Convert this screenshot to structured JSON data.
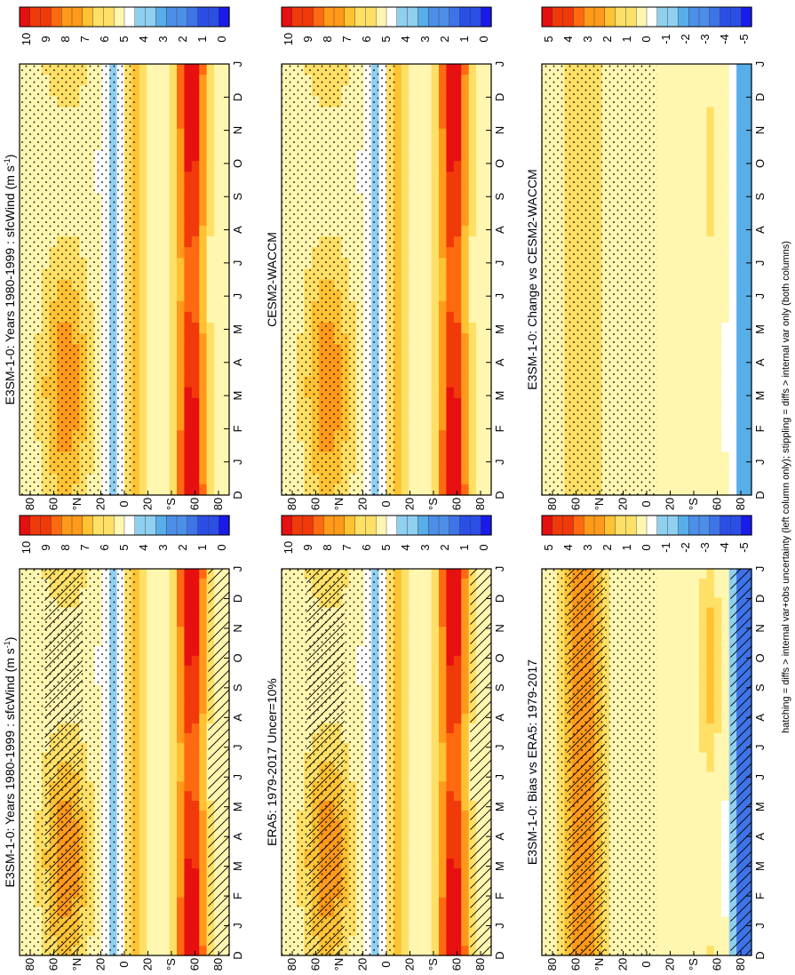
{
  "figure": {
    "caption": "hatching = diffs > internal var+obs uncertainty (left column only); stippling = diffs > internal var only (both columns)"
  },
  "chart_data": [
    {
      "type": "heatmap",
      "title": "E3SM-1-0: Years 1980-1999 : sfcWind (m s",
      "title_sup": "-1",
      "title_end": ")",
      "months": [
        "D",
        "J",
        "F",
        "M",
        "A",
        "M",
        "J",
        "J",
        "A",
        "S",
        "O",
        "N",
        "D",
        "J"
      ],
      "lat_labels": [
        "80",
        "60",
        "°N",
        "20",
        "0",
        "20",
        "°S",
        "60",
        "80"
      ],
      "colorbar": {
        "labels": [
          "0",
          "1",
          "2",
          "3",
          "4",
          "5",
          "6",
          "7",
          "8",
          "9",
          "10"
        ],
        "range": [
          0,
          10
        ]
      },
      "hatching": true,
      "stippling": true
    },
    {
      "type": "heatmap",
      "title": "E3SM-1-0: Years 1980-1999 : sfcWind (m s",
      "title_sup": "-1",
      "title_end": ")",
      "months": [
        "D",
        "J",
        "F",
        "M",
        "A",
        "M",
        "J",
        "J",
        "A",
        "S",
        "O",
        "N",
        "D",
        "J"
      ],
      "lat_labels": [
        "80",
        "60",
        "°N",
        "20",
        "0",
        "20",
        "°S",
        "60",
        "80"
      ],
      "colorbar": {
        "labels": [
          "0",
          "1",
          "2",
          "3",
          "4",
          "5",
          "6",
          "7",
          "8",
          "9",
          "10"
        ],
        "range": [
          0,
          10
        ]
      },
      "hatching": false,
      "stippling": true
    },
    {
      "type": "heatmap",
      "title": "ERA5: 1979-2017 Uncer=10%",
      "months": [
        "D",
        "J",
        "F",
        "M",
        "A",
        "M",
        "J",
        "J",
        "A",
        "S",
        "O",
        "N",
        "D",
        "J"
      ],
      "lat_labels": [
        "80",
        "60",
        "°N",
        "20",
        "0",
        "20",
        "°S",
        "60",
        "80"
      ],
      "colorbar": {
        "labels": [
          "0",
          "1",
          "2",
          "3",
          "4",
          "5",
          "6",
          "7",
          "8",
          "9",
          "10"
        ],
        "range": [
          0,
          10
        ]
      },
      "hatching": true,
      "stippling": true
    },
    {
      "type": "heatmap",
      "title": "CESM2-WACCM",
      "months": [
        "D",
        "J",
        "F",
        "M",
        "A",
        "M",
        "J",
        "J",
        "A",
        "S",
        "O",
        "N",
        "D",
        "J"
      ],
      "lat_labels": [
        "80",
        "60",
        "°N",
        "20",
        "0",
        "20",
        "°S",
        "60",
        "80"
      ],
      "colorbar": {
        "labels": [
          "0",
          "1",
          "2",
          "3",
          "4",
          "5",
          "6",
          "7",
          "8",
          "9",
          "10"
        ],
        "range": [
          0,
          10
        ]
      },
      "hatching": false,
      "stippling": true
    },
    {
      "type": "heatmap",
      "title": "E3SM-1-0: Bias vs ERA5: 1979-2017",
      "months": [
        "D",
        "J",
        "F",
        "M",
        "A",
        "M",
        "J",
        "J",
        "A",
        "S",
        "O",
        "N",
        "D",
        "J"
      ],
      "lat_labels": [
        "80",
        "60",
        "°N",
        "20",
        "0",
        "20",
        "°S",
        "60",
        "80"
      ],
      "colorbar": {
        "labels": [
          "-5",
          "-4",
          "-3",
          "-2",
          "-1",
          "0",
          "1",
          "2",
          "3",
          "4",
          "5"
        ],
        "range": [
          -5,
          5
        ]
      },
      "hatching": true,
      "stippling": true
    },
    {
      "type": "heatmap",
      "title": "E3SM-1-0: Change vs CESM2-WACCM",
      "months": [
        "D",
        "J",
        "F",
        "M",
        "A",
        "M",
        "J",
        "J",
        "A",
        "S",
        "O",
        "N",
        "D",
        "J"
      ],
      "lat_labels": [
        "80",
        "60",
        "°N",
        "20",
        "0",
        "20",
        "°S",
        "60",
        "80"
      ],
      "colorbar": {
        "labels": [
          "-5",
          "-4",
          "-3",
          "-2",
          "-1",
          "0",
          "1",
          "2",
          "3",
          "4",
          "5"
        ],
        "range": [
          -5,
          5
        ]
      },
      "hatching": false,
      "stippling": true
    }
  ],
  "colors": {
    "palette": [
      "#1a1aeb",
      "#2b4fe6",
      "#3f73e8",
      "#4d8fe8",
      "#57aee8",
      "#8fd0f0",
      "#ffffff",
      "#fff6b0",
      "#ffe066",
      "#ffc233",
      "#ff9a1a",
      "#ff6a10",
      "#f03a0a",
      "#e61010"
    ]
  }
}
